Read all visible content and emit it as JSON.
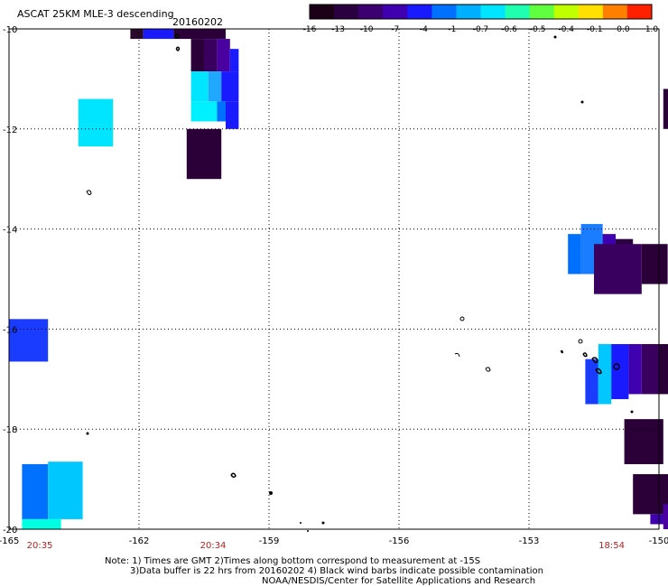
{
  "header": {
    "title": "ASCAT 25KM MLE-3 descending",
    "date": "20160202"
  },
  "colorbar": {
    "tick_labels": [
      "-16",
      "-13",
      "-10",
      "-7",
      "-4",
      "-1",
      "-0.7",
      "-0.6",
      "-0.5",
      "-0.4",
      "-0.1",
      "0.0",
      "1.0"
    ],
    "colors": [
      "#1c0018",
      "#2b0040",
      "#3c0070",
      "#3f00b0",
      "#1a1aff",
      "#0070ff",
      "#00b0ff",
      "#00e5ff",
      "#20ffb0",
      "#60ff40",
      "#c0ff00",
      "#ffe000",
      "#ff8000",
      "#ff2000"
    ]
  },
  "time_labels": [
    {
      "lon": -164.3,
      "text": "20:35"
    },
    {
      "lon": -160.3,
      "text": "20:34"
    },
    {
      "lon": -151.1,
      "text": "18:54"
    }
  ],
  "notes": [
    "Note: 1) Times are GMT 2)Times along bottom correspond to measurement at -15S",
    "3)Data buffer is 22 hrs from 20160202 4) Black wind barbs indicate possible contamination",
    "NOAA/NESDIS/Center for Satellite Applications and Research"
  ],
  "chart_data": {
    "type": "heatmap",
    "title": "ASCAT 25KM MLE-3 descending",
    "subtitle": "20160202",
    "xlim": [
      -165,
      -150
    ],
    "ylim": [
      -20,
      -10
    ],
    "x_ticks": [
      -165,
      -162,
      -159,
      -156,
      -153,
      -150
    ],
    "x_tick_labels": [
      "-165",
      "-162",
      "-159",
      "-156",
      "-153",
      "-150"
    ],
    "y_ticks": [
      -10,
      -12,
      -14,
      -16,
      -18,
      -20
    ],
    "y_tick_labels": [
      "-10",
      "-12",
      "-14",
      "-16",
      "-18",
      "-20"
    ],
    "grid": true,
    "colorbar_ticks": [
      "-16",
      "-13",
      "-10",
      "-7",
      "-4",
      "-1",
      "-0.7",
      "-0.6",
      "-0.5",
      "-0.4",
      "-0.1",
      "0.0",
      "1.0"
    ],
    "cells": [
      {
        "lon0": -162.2,
        "lon1": -161.9,
        "lat0": -10.0,
        "lat1": -10.2,
        "color": "#2a0a2a"
      },
      {
        "lon0": -161.9,
        "lon1": -161.2,
        "lat0": -10.0,
        "lat1": -10.2,
        "color": "#1a1aff"
      },
      {
        "lon0": -161.2,
        "lon1": -160.0,
        "lat0": -10.0,
        "lat1": -10.2,
        "color": "#2b0038"
      },
      {
        "lon0": -160.8,
        "lon1": -160.5,
        "lat0": -10.2,
        "lat1": -10.85,
        "color": "#2b0038"
      },
      {
        "lon0": -160.5,
        "lon1": -160.2,
        "lat0": -10.2,
        "lat1": -10.85,
        "color": "#3a0060"
      },
      {
        "lon0": -160.2,
        "lon1": -159.9,
        "lat0": -10.2,
        "lat1": -10.85,
        "color": "#4a00a0"
      },
      {
        "lon0": -159.9,
        "lon1": -159.7,
        "lat0": -10.4,
        "lat1": -10.85,
        "color": "#1a1aff"
      },
      {
        "lon0": -160.8,
        "lon1": -160.4,
        "lat0": -10.85,
        "lat1": -11.45,
        "color": "#00e5ff"
      },
      {
        "lon0": -160.4,
        "lon1": -160.1,
        "lat0": -10.85,
        "lat1": -11.45,
        "color": "#20a8ff"
      },
      {
        "lon0": -160.1,
        "lon1": -159.7,
        "lat0": -10.85,
        "lat1": -11.45,
        "color": "#1a1aff"
      },
      {
        "lon0": -160.8,
        "lon1": -160.2,
        "lat0": -11.45,
        "lat1": -11.85,
        "color": "#00f0ff"
      },
      {
        "lon0": -160.2,
        "lon1": -160.0,
        "lat0": -11.45,
        "lat1": -11.85,
        "color": "#0070ff"
      },
      {
        "lon0": -160.0,
        "lon1": -159.7,
        "lat0": -11.45,
        "lat1": -12.0,
        "color": "#1a1aff"
      },
      {
        "lon0": -163.4,
        "lon1": -162.6,
        "lat0": -11.4,
        "lat1": -12.35,
        "color": "#00e5ff"
      },
      {
        "lon0": -160.9,
        "lon1": -160.1,
        "lat0": -12.0,
        "lat1": -13.0,
        "color": "#2b0038"
      },
      {
        "lon0": -149.9,
        "lon1": -149.7,
        "lat0": -11.2,
        "lat1": -12.0,
        "color": "#2b0038"
      },
      {
        "lon0": -165.0,
        "lon1": -164.1,
        "lat0": -15.8,
        "lat1": -16.65,
        "color": "#1a3cff"
      },
      {
        "lon0": -164.7,
        "lon1": -164.1,
        "lat0": -18.7,
        "lat1": -19.8,
        "color": "#0070ff"
      },
      {
        "lon0": -164.1,
        "lon1": -163.3,
        "lat0": -18.65,
        "lat1": -19.8,
        "color": "#00c8ff"
      },
      {
        "lon0": -164.7,
        "lon1": -163.8,
        "lat0": -19.8,
        "lat1": -20.0,
        "color": "#00ffe0"
      },
      {
        "lon0": -152.1,
        "lon1": -151.8,
        "lat0": -14.1,
        "lat1": -14.9,
        "color": "#0070ff"
      },
      {
        "lon0": -151.8,
        "lon1": -151.3,
        "lat0": -13.9,
        "lat1": -14.9,
        "color": "#1a7cff"
      },
      {
        "lon0": -151.3,
        "lon1": -151.0,
        "lat0": -14.1,
        "lat1": -15.2,
        "color": "#3f00b0"
      },
      {
        "lon0": -151.0,
        "lon1": -150.6,
        "lat0": -14.2,
        "lat1": -15.2,
        "color": "#2b0040"
      },
      {
        "lon0": -151.5,
        "lon1": -150.4,
        "lat0": -14.3,
        "lat1": -15.3,
        "color": "#3a0060"
      },
      {
        "lon0": -150.4,
        "lon1": -149.8,
        "lat0": -14.3,
        "lat1": -15.1,
        "color": "#2b0038"
      },
      {
        "lon0": -151.7,
        "lon1": -151.4,
        "lat0": -16.6,
        "lat1": -17.5,
        "color": "#1a3cff"
      },
      {
        "lon0": -151.4,
        "lon1": -151.1,
        "lat0": -16.3,
        "lat1": -17.5,
        "color": "#00c8ff"
      },
      {
        "lon0": -151.1,
        "lon1": -150.7,
        "lat0": -16.3,
        "lat1": -17.4,
        "color": "#1a1aff"
      },
      {
        "lon0": -150.7,
        "lon1": -150.4,
        "lat0": -16.3,
        "lat1": -17.3,
        "color": "#3f00b0"
      },
      {
        "lon0": -150.4,
        "lon1": -150.0,
        "lat0": -16.3,
        "lat1": -17.3,
        "color": "#3a0060"
      },
      {
        "lon0": -150.0,
        "lon1": -149.7,
        "lat0": -16.3,
        "lat1": -17.3,
        "color": "#2b0038"
      },
      {
        "lon0": -150.8,
        "lon1": -149.9,
        "lat0": -17.8,
        "lat1": -18.7,
        "color": "#2b0038"
      },
      {
        "lon0": -150.6,
        "lon1": -149.7,
        "lat0": -18.9,
        "lat1": -19.7,
        "color": "#2b0038"
      },
      {
        "lon0": -150.2,
        "lon1": -149.7,
        "lat0": -19.7,
        "lat1": -19.9,
        "color": "#3f00b0"
      },
      {
        "lon0": -149.9,
        "lon1": -149.6,
        "lat0": -19.5,
        "lat1": -20.0,
        "color": "#4a00a0"
      }
    ]
  }
}
